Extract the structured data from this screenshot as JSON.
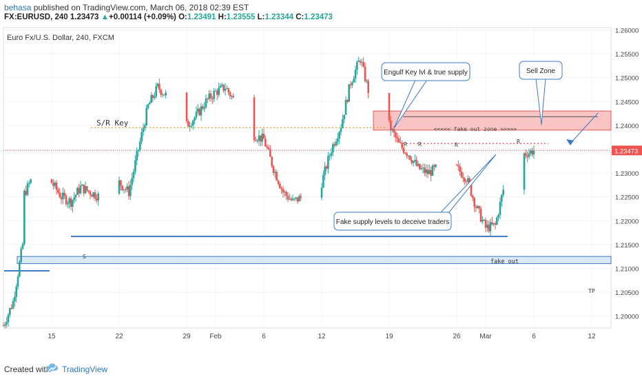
{
  "header": {
    "user": "behasa",
    "published": " published on TradingView.com, March 06, 2018 02:39 EST",
    "symbol": "FX:EURUSD, 240",
    "last": "1.23473",
    "change_arrow": "▲",
    "change": "+0.00114 (+0.09%)",
    "o_label": "O:",
    "o_value": "1.23491",
    "h_label": "H:",
    "h_value": "1.23555",
    "l_label": "L:",
    "l_value": "1.23344",
    "c_label": "C:",
    "c_value": "1.23473"
  },
  "footer": {
    "created": "Created with",
    "brand": "TradingView"
  },
  "colors": {
    "up": "#26a69a",
    "down": "#ef5350",
    "accent": "#2a7ab8",
    "zone_fill": "#f8c4c4",
    "zone_border": "#e05a5a",
    "blue_line": "#3b78c8",
    "support_fill": "#dbe8f8"
  },
  "chart_data": {
    "type": "candlestick",
    "title": "Euro Fx/U.S. Dollar, 240, FXCM",
    "y_range": [
      1.1975,
      1.2605
    ],
    "y_ticks": [
      "1.26000",
      "1.25500",
      "1.25000",
      "1.24500",
      "1.24000",
      "1.23500",
      "1.23000",
      "1.22500",
      "1.22000",
      "1.21500",
      "1.21000",
      "1.20500",
      "1.20000"
    ],
    "y_tick_values": [
      1.26,
      1.255,
      1.25,
      1.245,
      1.24,
      1.235,
      1.23,
      1.225,
      1.22,
      1.215,
      1.21,
      1.205,
      1.2
    ],
    "x_ticks": [
      "15",
      "22",
      "29",
      "Feb",
      "6",
      "12",
      "19",
      "26",
      "Mar",
      "6",
      "12"
    ],
    "x_tick_dates": [
      "2018-01-15",
      "2018-01-22",
      "2018-01-29",
      "2018-02-01",
      "2018-02-06",
      "2018-02-12",
      "2018-02-19",
      "2018-02-26",
      "2018-03-01",
      "2018-03-06",
      "2018-03-12"
    ],
    "x_range": [
      "2018-01-10",
      "2018-03-14"
    ],
    "price_label": "1.23473",
    "current_price": 1.23473,
    "path": [
      [
        "2018-01-10",
        1.198
      ],
      [
        "2018-01-11",
        1.203
      ],
      [
        "2018-01-12",
        1.215
      ],
      [
        "2018-01-12",
        1.225
      ],
      [
        "2018-01-13",
        1.229
      ],
      [
        "2018-01-14",
        1.227
      ],
      [
        "2018-01-15",
        1.228
      ],
      [
        "2018-01-16",
        1.225
      ],
      [
        "2018-01-17",
        1.224
      ],
      [
        "2018-01-18",
        1.227
      ],
      [
        "2018-01-19",
        1.226
      ],
      [
        "2018-01-20",
        1.225
      ],
      [
        "2018-01-21",
        1.224
      ],
      [
        "2018-01-22",
        1.228
      ],
      [
        "2018-01-23",
        1.226
      ],
      [
        "2018-01-24",
        1.235
      ],
      [
        "2018-01-25",
        1.244
      ],
      [
        "2018-01-26",
        1.248
      ],
      [
        "2018-01-27",
        1.246
      ],
      [
        "2018-01-28",
        1.242
      ],
      [
        "2018-01-29",
        1.24
      ],
      [
        "2018-01-30",
        1.242
      ],
      [
        "2018-01-31",
        1.245
      ],
      [
        "2018-02-01",
        1.247
      ],
      [
        "2018-02-02",
        1.248
      ],
      [
        "2018-02-03",
        1.245
      ],
      [
        "2018-02-04",
        1.242
      ],
      [
        "2018-02-05",
        1.238
      ],
      [
        "2018-02-06",
        1.237
      ],
      [
        "2018-02-07",
        1.231
      ],
      [
        "2018-02-08",
        1.226
      ],
      [
        "2018-02-09",
        1.224
      ],
      [
        "2018-02-10",
        1.225
      ],
      [
        "2018-02-11",
        1.226
      ],
      [
        "2018-02-12",
        1.228
      ],
      [
        "2018-02-13",
        1.235
      ],
      [
        "2018-02-14",
        1.24
      ],
      [
        "2018-02-15",
        1.249
      ],
      [
        "2018-02-16",
        1.254
      ],
      [
        "2018-02-17",
        1.246
      ],
      [
        "2018-02-18",
        1.242
      ],
      [
        "2018-02-19",
        1.24
      ],
      [
        "2018-02-20",
        1.236
      ],
      [
        "2018-02-21",
        1.234
      ],
      [
        "2018-02-22",
        1.231
      ],
      [
        "2018-02-23",
        1.23
      ],
      [
        "2018-02-24",
        1.231
      ],
      [
        "2018-02-25",
        1.232
      ],
      [
        "2018-02-26",
        1.231
      ],
      [
        "2018-02-27",
        1.229
      ],
      [
        "2018-02-28",
        1.223
      ],
      [
        "2018-03-01",
        1.2185
      ],
      [
        "2018-03-02",
        1.219
      ],
      [
        "2018-03-03",
        1.228
      ],
      [
        "2018-03-04",
        1.232
      ],
      [
        "2018-03-05",
        1.234
      ],
      [
        "2018-03-06",
        1.23473
      ]
    ]
  },
  "annotations": {
    "sr_key": "S/R Key",
    "sr_key_level": 1.2395,
    "engulf": "Engulf Key lvl & true supply",
    "sell_zone": "Sell Zone",
    "fake_zone": "<<<<< fake out zone >>>>>",
    "fake_supply": "Fake supply levels to deceive traders",
    "support_label": "S",
    "fake_out": "fake out",
    "tp": "TP",
    "r_labels": [
      "R",
      "R",
      "R",
      "R"
    ],
    "zone_top": 1.243,
    "zone_bottom": 1.239,
    "support_zone_top": 1.2125,
    "support_zone_bottom": 1.211,
    "support_line": 1.2167
  }
}
